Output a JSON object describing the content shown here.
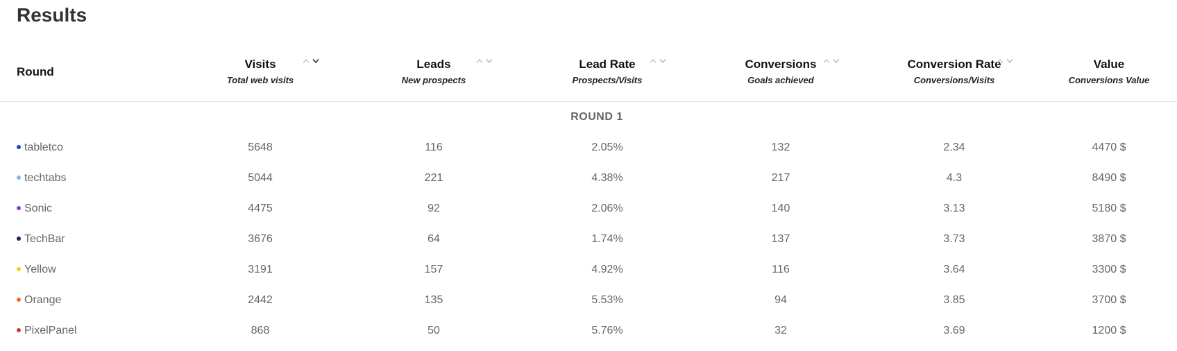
{
  "page": {
    "title": "Results"
  },
  "table": {
    "round_header": "Round",
    "columns": [
      {
        "key": "visits",
        "label": "Visits",
        "sub": "Total web visits",
        "sort": "desc",
        "sortable": true
      },
      {
        "key": "leads",
        "label": "Leads",
        "sub": "New prospects",
        "sort": "none",
        "sortable": true
      },
      {
        "key": "lead_rate",
        "label": "Lead Rate",
        "sub": "Prospects/Visits",
        "sort": "none",
        "sortable": true
      },
      {
        "key": "conversions",
        "label": "Conversions",
        "sub": "Goals achieved",
        "sort": "none",
        "sortable": true
      },
      {
        "key": "conversion_rate",
        "label": "Conversion Rate",
        "sub": "Conversions/Visits",
        "sort": "none",
        "sortable": true
      },
      {
        "key": "value",
        "label": "Value",
        "sub": "Conversions Value",
        "sort": "none",
        "sortable": false
      }
    ],
    "groups": [
      {
        "label": "ROUND 1",
        "rows": [
          {
            "name": "tabletco",
            "color": "#2b3fb8",
            "visits": "5648",
            "leads": "116",
            "lead_rate": "2.05%",
            "conversions": "132",
            "conversion_rate": "2.34",
            "value": "4470 $"
          },
          {
            "name": "techtabs",
            "color": "#8fb0dc",
            "visits": "5044",
            "leads": "221",
            "lead_rate": "4.38%",
            "conversions": "217",
            "conversion_rate": "4.3",
            "value": "8490 $"
          },
          {
            "name": "Sonic",
            "color": "#8e3fbf",
            "visits": "4475",
            "leads": "92",
            "lead_rate": "2.06%",
            "conversions": "140",
            "conversion_rate": "3.13",
            "value": "5180 $"
          },
          {
            "name": "TechBar",
            "color": "#1c2250",
            "visits": "3676",
            "leads": "64",
            "lead_rate": "1.74%",
            "conversions": "137",
            "conversion_rate": "3.73",
            "value": "3870 $"
          },
          {
            "name": "Yellow",
            "color": "#f2d10a",
            "visits": "3191",
            "leads": "157",
            "lead_rate": "4.92%",
            "conversions": "116",
            "conversion_rate": "3.64",
            "value": "3300 $"
          },
          {
            "name": "Orange",
            "color": "#ef6a2a",
            "visits": "2442",
            "leads": "135",
            "lead_rate": "5.53%",
            "conversions": "94",
            "conversion_rate": "3.85",
            "value": "3700 $"
          },
          {
            "name": "PixelPanel",
            "color": "#d8352f",
            "visits": "868",
            "leads": "50",
            "lead_rate": "5.76%",
            "conversions": "32",
            "conversion_rate": "3.69",
            "value": "1200 $"
          }
        ]
      }
    ]
  }
}
